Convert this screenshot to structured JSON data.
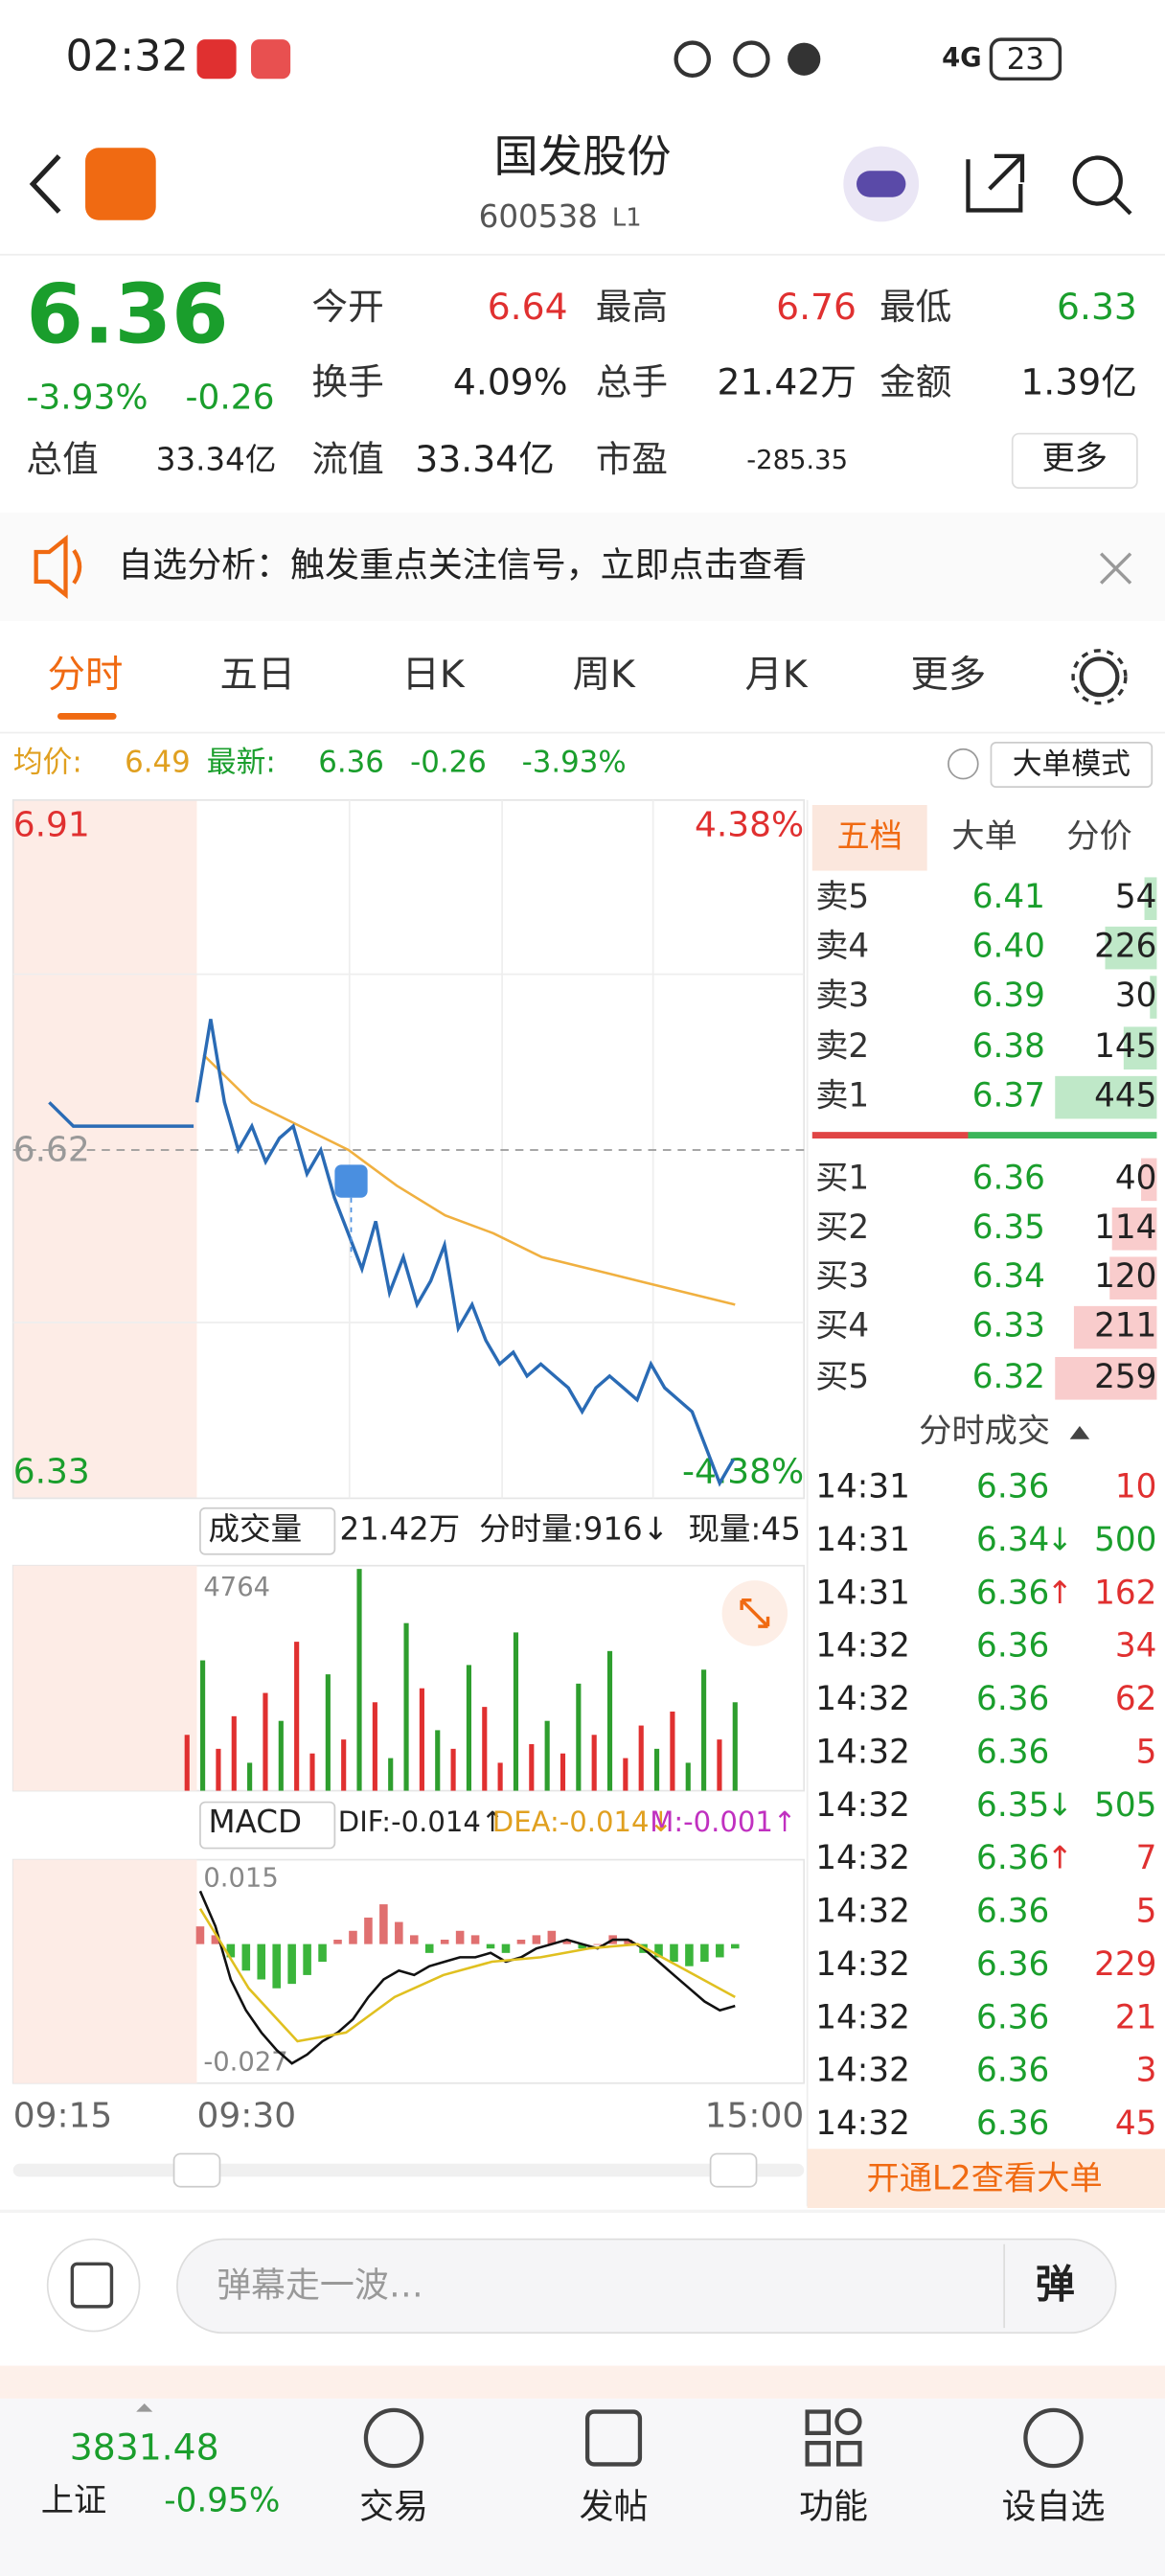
{
  "status_bar": {
    "time": "02:32",
    "network": "4G",
    "battery": "23"
  },
  "header": {
    "title": "国发股份",
    "code": "600538",
    "level": "L1"
  },
  "quote": {
    "price": "6.36",
    "change_pct": "-3.93%",
    "change": "-0.26",
    "more": "更多",
    "fields": [
      {
        "label": "今开",
        "value": "6.64",
        "color": "#e03030"
      },
      {
        "label": "最高",
        "value": "6.76",
        "color": "#e03030"
      },
      {
        "label": "最低",
        "value": "6.33",
        "color": "#1a9e2c"
      },
      {
        "label": "换手",
        "value": "4.09%",
        "color": "#222222"
      },
      {
        "label": "总手",
        "value": "21.42万",
        "color": "#222222"
      },
      {
        "label": "金额",
        "value": "1.39亿",
        "color": "#222222"
      },
      {
        "label": "总值",
        "value": "33.34亿",
        "color": "#222222"
      },
      {
        "label": "流值",
        "value": "33.34亿",
        "color": "#222222"
      },
      {
        "label": "市盈",
        "value": "-285.35",
        "color": "#222222"
      }
    ]
  },
  "notice": "自选分析：触发重点关注信号，立即点击查看",
  "tabs": [
    "分时",
    "五日",
    "日K",
    "周K",
    "月K",
    "更多"
  ],
  "summary": {
    "avg_label": "均价:",
    "avg": "6.49",
    "latest_label": "最新:",
    "latest": "6.36",
    "change": "-0.26",
    "change_pct": "-3.93%",
    "mode": "大单模式"
  },
  "chart": {
    "ylim": [
      6.33,
      6.91
    ],
    "top_label": "6.91",
    "bottom_label": "6.33",
    "ref": 6.62,
    "top_pct": "4.38%",
    "bottom_pct": "-4.38%",
    "premarket": [
      6.66,
      6.64,
      6.64,
      6.64,
      6.64,
      6.64,
      6.64
    ],
    "price": [
      6.66,
      6.73,
      6.66,
      6.62,
      6.64,
      6.61,
      6.63,
      6.64,
      6.6,
      6.62,
      6.58,
      6.55,
      6.52,
      6.56,
      6.5,
      6.53,
      6.49,
      6.51,
      6.54,
      6.47,
      6.49,
      6.46,
      6.44,
      6.45,
      6.43,
      6.44,
      6.43,
      6.42,
      6.4,
      6.42,
      6.43,
      6.42,
      6.41,
      6.44,
      6.42,
      6.41,
      6.4,
      6.37,
      6.34,
      6.36
    ],
    "avg": [
      6.7,
      6.66,
      6.64,
      6.62,
      6.59,
      6.565,
      6.55,
      6.53,
      6.52,
      6.51,
      6.5,
      6.49
    ],
    "time_labels": [
      "09:15",
      "09:30",
      "15:00"
    ]
  },
  "volume": {
    "label": "成交量",
    "total": "21.42万",
    "tick_label": "分时量:916↓",
    "current": "现量:45",
    "max": 4764,
    "bars": [
      1200,
      2800,
      900,
      1600,
      600,
      2100,
      1500,
      3200,
      800,
      2500,
      1100,
      4764,
      1900,
      700,
      3600,
      2200,
      1300,
      900,
      2700,
      1800,
      600,
      3400,
      1000,
      1500,
      800,
      2300,
      1200,
      3000,
      700,
      1400,
      900,
      1700,
      600,
      2600,
      1100,
      1900
    ],
    "colors": [
      "#e03030",
      "#2e9e2e",
      "#e03030",
      "#e03030",
      "#2e9e2e",
      "#e03030",
      "#2e9e2e",
      "#e03030",
      "#e03030",
      "#2e9e2e",
      "#e03030",
      "#2e9e2e",
      "#e03030",
      "#2e9e2e",
      "#2e9e2e",
      "#e03030",
      "#2e9e2e",
      "#e03030",
      "#2e9e2e",
      "#e03030",
      "#e03030",
      "#2e9e2e",
      "#e03030",
      "#2e9e2e",
      "#e03030",
      "#2e9e2e",
      "#e03030",
      "#2e9e2e",
      "#e03030",
      "#e03030",
      "#2e9e2e",
      "#e03030",
      "#2e9e2e",
      "#2e9e2e",
      "#e03030",
      "#2e9e2e"
    ]
  },
  "macd": {
    "label": "MACD",
    "dif": "DIF:-0.014↑",
    "dea": "DEA:-0.014↓",
    "m": "M:-0.001↑",
    "ylim": [
      -0.027,
      0.015
    ],
    "top": "0.015",
    "bottom": "-0.027",
    "hist": [
      0.004,
      0.002,
      -0.003,
      -0.006,
      -0.008,
      -0.01,
      -0.009,
      -0.007,
      -0.004,
      0.001,
      0.003,
      0.006,
      0.009,
      0.005,
      0.002,
      -0.002,
      0.001,
      0.003,
      0.002,
      -0.001,
      -0.002,
      0.001,
      0.002,
      0.003,
      0.001,
      -0.001,
      0,
      0.002,
      0.001,
      -0.002,
      -0.003,
      -0.004,
      -0.005,
      -0.004,
      -0.003,
      -0.001
    ],
    "dif_line": [
      0.012,
      0.004,
      -0.008,
      -0.015,
      -0.02,
      -0.024,
      -0.027,
      -0.025,
      -0.022,
      -0.02,
      -0.017,
      -0.012,
      -0.008,
      -0.006,
      -0.007,
      -0.005,
      -0.004,
      -0.003,
      -0.003,
      -0.002,
      -0.004,
      -0.003,
      -0.001,
      0,
      0.001,
      0,
      -0.001,
      0.001,
      0.001,
      -0.001,
      -0.004,
      -0.007,
      -0.01,
      -0.013,
      -0.015,
      -0.014
    ],
    "dea_line": [
      0.008,
      -0.01,
      -0.022,
      -0.02,
      -0.012,
      -0.007,
      -0.004,
      -0.003,
      -0.001,
      0,
      -0.006,
      -0.012
    ]
  },
  "order_book": {
    "tabs": [
      "五档",
      "大单",
      "分价"
    ],
    "asks": [
      {
        "label": "卖5",
        "price": "6.41",
        "volume": 54
      },
      {
        "label": "卖4",
        "price": "6.40",
        "volume": 226
      },
      {
        "label": "卖3",
        "price": "6.39",
        "volume": 30
      },
      {
        "label": "卖2",
        "price": "6.38",
        "volume": 145
      },
      {
        "label": "卖1",
        "price": "6.37",
        "volume": 445
      }
    ],
    "bids": [
      {
        "label": "买1",
        "price": "6.36",
        "volume": 40
      },
      {
        "label": "买2",
        "price": "6.35",
        "volume": 114
      },
      {
        "label": "买3",
        "price": "6.34",
        "volume": 120
      },
      {
        "label": "买4",
        "price": "6.33",
        "volume": 211
      },
      {
        "label": "买5",
        "price": "6.32",
        "volume": 259
      }
    ]
  },
  "trades": {
    "title": "分时成交",
    "rows": [
      {
        "time": "14:31",
        "price": "6.36",
        "dir": "",
        "volume": "10",
        "color": "#e03030"
      },
      {
        "time": "14:31",
        "price": "6.34",
        "dir": "↓",
        "volume": "500",
        "color": "#1a9e2c"
      },
      {
        "time": "14:31",
        "price": "6.36",
        "dir": "↑",
        "volume": "162",
        "color": "#e03030"
      },
      {
        "time": "14:32",
        "price": "6.36",
        "dir": "",
        "volume": "34",
        "color": "#e03030"
      },
      {
        "time": "14:32",
        "price": "6.36",
        "dir": "",
        "volume": "62",
        "color": "#e03030"
      },
      {
        "time": "14:32",
        "price": "6.36",
        "dir": "",
        "volume": "5",
        "color": "#e03030"
      },
      {
        "time": "14:32",
        "price": "6.35",
        "dir": "↓",
        "volume": "505",
        "color": "#1a9e2c"
      },
      {
        "time": "14:32",
        "price": "6.36",
        "dir": "↑",
        "volume": "7",
        "color": "#e03030"
      },
      {
        "time": "14:32",
        "price": "6.36",
        "dir": "",
        "volume": "5",
        "color": "#e03030"
      },
      {
        "time": "14:32",
        "price": "6.36",
        "dir": "",
        "volume": "229",
        "color": "#e03030"
      },
      {
        "time": "14:32",
        "price": "6.36",
        "dir": "",
        "volume": "21",
        "color": "#e03030"
      },
      {
        "time": "14:32",
        "price": "6.36",
        "dir": "",
        "volume": "3",
        "color": "#e03030"
      },
      {
        "time": "14:32",
        "price": "6.36",
        "dir": "",
        "volume": "45",
        "color": "#e03030"
      }
    ]
  },
  "l2": "开通L2查看大单",
  "comment": {
    "placeholder": "弹幕走一波…",
    "danmu": "弹"
  },
  "bottom": {
    "index_value": "3831.48",
    "index_name": "上证",
    "index_change": "-0.95%",
    "nav": [
      "交易",
      "发帖",
      "功能",
      "设自选"
    ]
  }
}
